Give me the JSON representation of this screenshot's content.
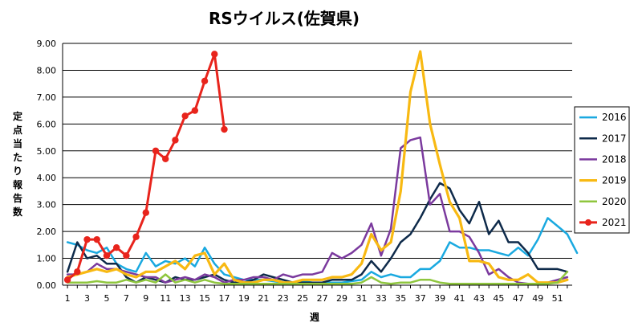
{
  "chart_data": {
    "type": "line",
    "title": "RSウイルス(佐賀県)",
    "xlabel": "週",
    "ylabel": "定点当たり報告数",
    "ylim": [
      0,
      9
    ],
    "yticks": [
      "0.00",
      "1.00",
      "2.00",
      "3.00",
      "4.00",
      "5.00",
      "6.00",
      "7.00",
      "8.00",
      "9.00"
    ],
    "xlim": [
      1,
      52
    ],
    "xticks": [
      1,
      3,
      5,
      7,
      9,
      11,
      13,
      15,
      17,
      19,
      21,
      23,
      25,
      27,
      29,
      31,
      33,
      35,
      37,
      39,
      41,
      43,
      45,
      47,
      49,
      51
    ],
    "legend_position": "right",
    "grid": "horizontal",
    "series": [
      {
        "name": "2016",
        "color": "#1aa9e0",
        "width": 2.5,
        "markers": false,
        "values": [
          1.6,
          1.5,
          1.3,
          1.2,
          1.4,
          0.8,
          0.6,
          0.5,
          1.2,
          0.7,
          0.9,
          0.8,
          1.0,
          0.7,
          1.4,
          0.8,
          0.4,
          0.3,
          0.2,
          0.2,
          0.2,
          0.15,
          0.1,
          0.1,
          0.15,
          0.1,
          0.1,
          0.1,
          0.1,
          0.15,
          0.2,
          0.5,
          0.3,
          0.4,
          0.3,
          0.3,
          0.6,
          0.6,
          0.9,
          1.6,
          1.4,
          1.4,
          1.3,
          1.3,
          1.2,
          1.1,
          1.4,
          1.1,
          1.7,
          2.5,
          2.2,
          1.9,
          1.2
        ]
      },
      {
        "name": "2017",
        "color": "#0e2a4a",
        "width": 2.5,
        "markers": false,
        "values": [
          0.5,
          1.6,
          1.0,
          1.1,
          0.8,
          0.8,
          0.3,
          0.1,
          0.3,
          0.2,
          0.1,
          0.3,
          0.2,
          0.2,
          0.3,
          0.4,
          0.2,
          0.1,
          0.1,
          0.2,
          0.4,
          0.3,
          0.2,
          0.1,
          0.1,
          0.1,
          0.1,
          0.2,
          0.2,
          0.2,
          0.4,
          0.9,
          0.5,
          1.0,
          1.6,
          1.9,
          2.5,
          3.2,
          3.8,
          3.6,
          2.8,
          2.3,
          3.1,
          1.9,
          2.4,
          1.6,
          1.6,
          1.2,
          0.6,
          0.6,
          0.6,
          0.5
        ]
      },
      {
        "name": "2018",
        "color": "#7b3a9e",
        "width": 2.5,
        "markers": false,
        "values": [
          0.4,
          0.4,
          0.5,
          0.8,
          0.6,
          0.6,
          0.5,
          0.4,
          0.3,
          0.3,
          0.1,
          0.2,
          0.3,
          0.2,
          0.4,
          0.3,
          0.1,
          0.2,
          0.2,
          0.3,
          0.3,
          0.2,
          0.4,
          0.3,
          0.4,
          0.4,
          0.5,
          1.2,
          1.0,
          1.2,
          1.5,
          2.3,
          1.1,
          2.1,
          5.1,
          5.4,
          5.5,
          3.0,
          3.4,
          2.0,
          2.0,
          1.8,
          1.2,
          0.4,
          0.6,
          0.3,
          0.1,
          0.05,
          0.05,
          0.1,
          0.2,
          0.3
        ]
      },
      {
        "name": "2019",
        "color": "#f8b912",
        "width": 3.2,
        "markers": false,
        "values": [
          0.3,
          0.4,
          0.5,
          0.6,
          0.5,
          0.6,
          0.4,
          0.3,
          0.5,
          0.5,
          0.7,
          0.9,
          0.6,
          1.1,
          1.2,
          0.4,
          0.8,
          0.2,
          0.1,
          0.1,
          0.2,
          0.2,
          0.1,
          0.1,
          0.2,
          0.2,
          0.2,
          0.3,
          0.3,
          0.4,
          0.8,
          1.9,
          1.3,
          1.6,
          3.5,
          7.2,
          8.7,
          6.0,
          4.5,
          3.1,
          2.5,
          0.9,
          0.9,
          0.8,
          0.3,
          0.2,
          0.2,
          0.4,
          0.1,
          0.1,
          0.1,
          0.2
        ]
      },
      {
        "name": "2020",
        "color": "#8fc63e",
        "width": 2.5,
        "markers": false,
        "values": [
          0.1,
          0.1,
          0.1,
          0.15,
          0.1,
          0.1,
          0.2,
          0.1,
          0.2,
          0.1,
          0.4,
          0.1,
          0.2,
          0.1,
          0.2,
          0.1,
          0.05,
          0.05,
          0.05,
          0.05,
          0.05,
          0.05,
          0.05,
          0.05,
          0.05,
          0.05,
          0.05,
          0.05,
          0.05,
          0.05,
          0.1,
          0.3,
          0.1,
          0.05,
          0.1,
          0.1,
          0.2,
          0.2,
          0.1,
          0.05,
          0.05,
          0.05,
          0.05,
          0.05,
          0.05,
          0.05,
          0.05,
          0.05,
          0.05,
          0.05,
          0.1,
          0.5
        ]
      },
      {
        "name": "2021",
        "color": "#e8241c",
        "width": 3,
        "markers": true,
        "values": [
          0.2,
          0.5,
          1.7,
          1.7,
          1.1,
          1.4,
          1.1,
          1.8,
          2.7,
          5.0,
          4.7,
          5.4,
          6.3,
          6.5,
          7.6,
          8.6,
          5.8
        ]
      }
    ]
  }
}
